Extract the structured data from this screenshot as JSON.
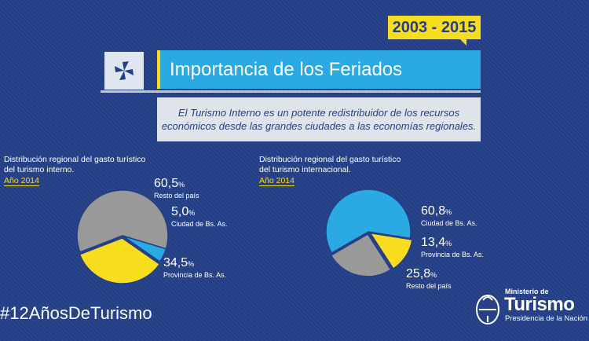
{
  "header": {
    "years": "2003 - 2015",
    "title": "Importancia de los Feriados",
    "description_line1": "El Turismo Interno es un potente redistribuidor de los recursos",
    "description_line2": "económicos desde las grandes ciudades a las economías regionales."
  },
  "colors": {
    "background": "#243f86",
    "yellow": "#f8dc1e",
    "cyan": "#2aa9e3",
    "gray": "#999999"
  },
  "chart_data": [
    {
      "type": "pie",
      "title_line1": "Distribución regional del gasto turístico",
      "title_line2": "del turismo interno.",
      "subtitle": "Año 2014",
      "unit": "%",
      "slices": [
        {
          "name": "Resto del país",
          "value": 60.5,
          "value_text": "60,5",
          "color": "#999999"
        },
        {
          "name": "Ciudad de Bs. As.",
          "value": 5.0,
          "value_text": "5,0",
          "color": "#2aa9e3"
        },
        {
          "name": "Provincia de Bs. As.",
          "value": 34.5,
          "value_text": "34,5",
          "color": "#f8dc1e"
        }
      ]
    },
    {
      "type": "pie",
      "title_line1": "Distribución regional del gasto turístico",
      "title_line2": "del turismo internacional.",
      "subtitle": "Año 2014",
      "unit": "%",
      "slices": [
        {
          "name": "Ciudad de Bs. As.",
          "value": 60.8,
          "value_text": "60,8",
          "color": "#2aa9e3"
        },
        {
          "name": "Provincia de Bs. As.",
          "value": 13.4,
          "value_text": "13,4",
          "color": "#f8dc1e"
        },
        {
          "name": "Resto del país",
          "value": 25.8,
          "value_text": "25,8",
          "color": "#999999"
        }
      ]
    }
  ],
  "footer": {
    "hashtag": "#12AñosDeTurismo",
    "ministry_top": "Ministerio de",
    "ministry_name": "Turismo",
    "ministry_bottom": "Presidencia de la Nación"
  }
}
